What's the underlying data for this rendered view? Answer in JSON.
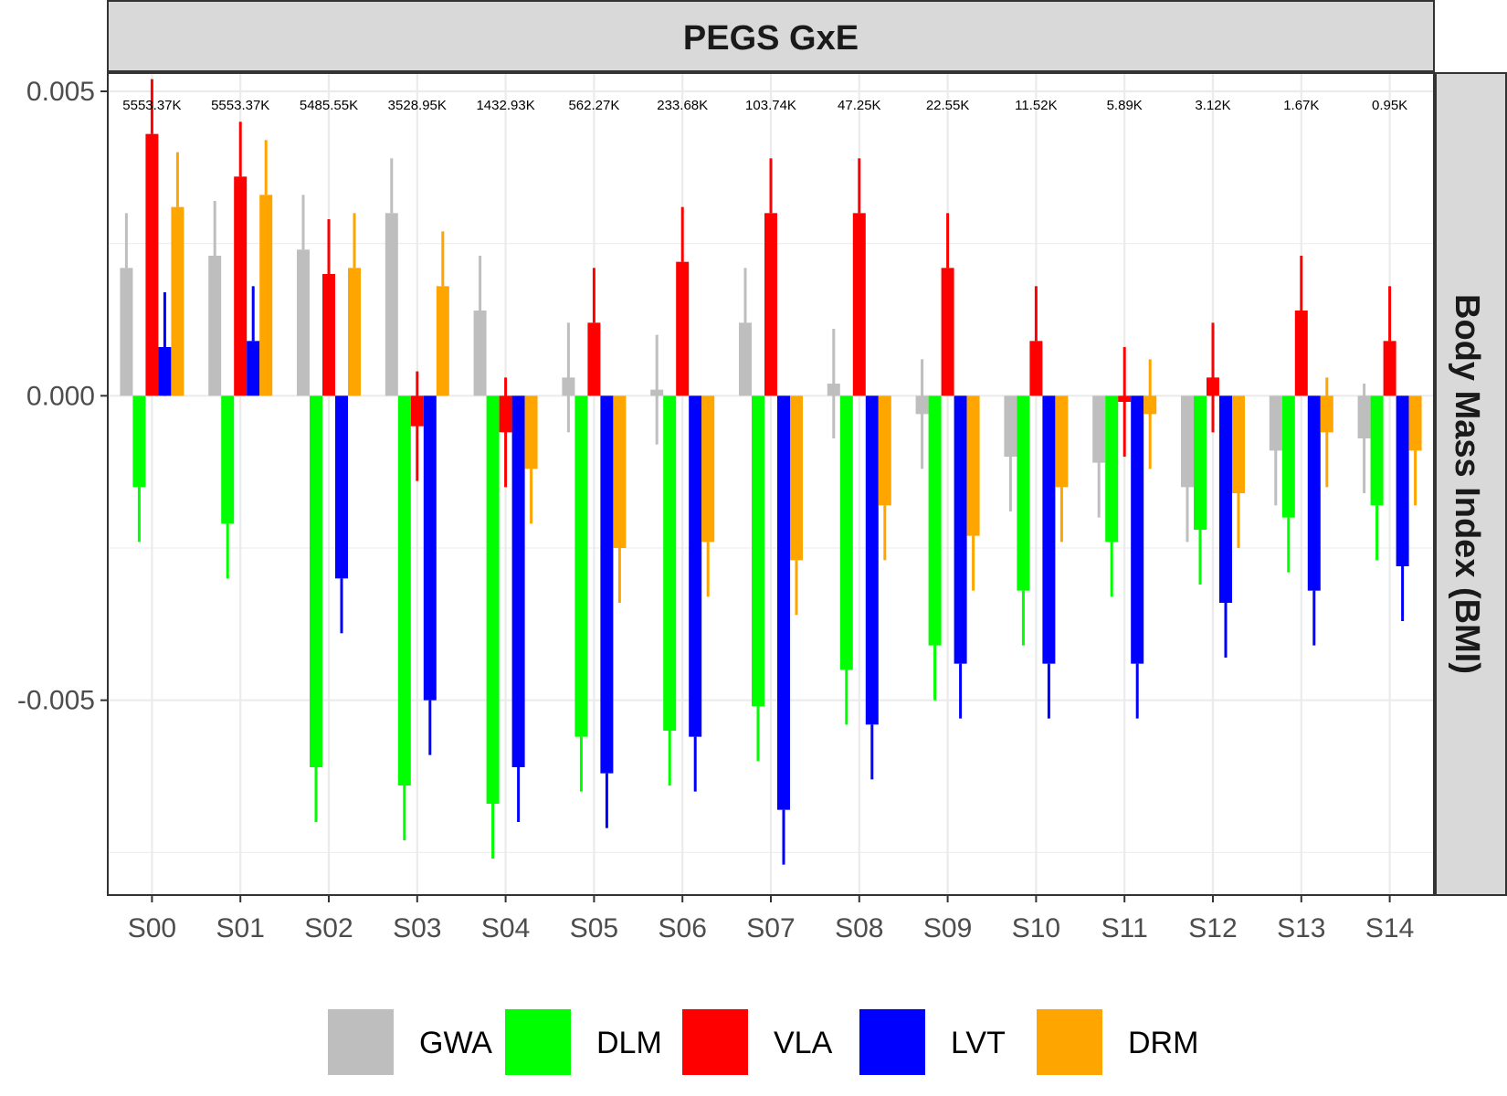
{
  "chart_data": {
    "type": "bar",
    "title": "PEGS GxE",
    "facet_label_right": "Body Mass Index (BMI)",
    "xlabel": "",
    "ylabel": "",
    "categories": [
      "S00",
      "S01",
      "S02",
      "S03",
      "S04",
      "S05",
      "S06",
      "S07",
      "S08",
      "S09",
      "S10",
      "S11",
      "S12",
      "S13",
      "S14"
    ],
    "annotations": [
      "5553.37K",
      "5553.37K",
      "5485.55K",
      "3528.95K",
      "1432.93K",
      "562.27K",
      "233.68K",
      "103.74K",
      "47.25K",
      "22.55K",
      "11.52K",
      "5.89K",
      "3.12K",
      "1.67K",
      "0.95K"
    ],
    "ylim": [
      -0.0082,
      0.0053
    ],
    "yticks": [
      0.005,
      0.0,
      -0.005
    ],
    "ytick_labels": [
      "0.005",
      "0.000",
      "-0.005"
    ],
    "grid": true,
    "legend_position": "bottom",
    "series": [
      {
        "name": "GWA",
        "color": "#BEBEBE",
        "values": [
          0.0021,
          0.0023,
          0.0024,
          0.003,
          0.0014,
          0.0003,
          0.0001,
          0.0012,
          0.0002,
          -0.0003,
          -0.001,
          -0.0011,
          -0.0015,
          -0.0009,
          -0.0007
        ],
        "upper": [
          0.003,
          0.0032,
          0.0033,
          0.0039,
          0.0023,
          0.0012,
          0.001,
          0.0021,
          0.0011,
          0.0006,
          -0.0001,
          -0.0002,
          -0.0006,
          0.0,
          0.0002
        ],
        "lower": [
          0.0021,
          0.0023,
          0.0024,
          0.003,
          0.0014,
          -0.0006,
          -0.0008,
          0.0012,
          -0.0007,
          -0.0012,
          -0.0019,
          -0.002,
          -0.0024,
          -0.0018,
          -0.0016
        ]
      },
      {
        "name": "DLM",
        "color": "#00FF00",
        "values": [
          -0.0015,
          -0.0021,
          -0.0061,
          -0.0064,
          -0.0067,
          -0.0056,
          -0.0055,
          -0.0051,
          -0.0045,
          -0.0041,
          -0.0032,
          -0.0024,
          -0.0022,
          -0.002,
          -0.0018
        ],
        "upper": [
          -0.0015,
          -0.0021,
          -0.0061,
          -0.0064,
          -0.0067,
          -0.0056,
          -0.0055,
          -0.0051,
          -0.0045,
          -0.0041,
          -0.0032,
          -0.0024,
          -0.0022,
          -0.002,
          -0.0018
        ],
        "lower": [
          -0.0024,
          -0.003,
          -0.007,
          -0.0073,
          -0.0076,
          -0.0065,
          -0.0064,
          -0.006,
          -0.0054,
          -0.005,
          -0.0041,
          -0.0033,
          -0.0031,
          -0.0029,
          -0.0027
        ]
      },
      {
        "name": "VLA",
        "color": "#FF0000",
        "values": [
          0.0043,
          0.0036,
          0.002,
          -0.0005,
          -0.0006,
          0.0012,
          0.0022,
          0.003,
          0.003,
          0.0021,
          0.0009,
          -0.0001,
          0.0003,
          0.0014,
          0.0009
        ],
        "upper": [
          0.0052,
          0.0045,
          0.0029,
          0.0004,
          0.0003,
          0.0021,
          0.0031,
          0.0039,
          0.0039,
          0.003,
          0.0018,
          0.0008,
          0.0012,
          0.0023,
          0.0018
        ],
        "lower": [
          0.0043,
          0.0036,
          0.002,
          -0.0014,
          -0.0015,
          0.0012,
          0.0022,
          0.003,
          0.003,
          0.0021,
          0.0009,
          -0.001,
          -0.0006,
          0.0014,
          0.0009
        ]
      },
      {
        "name": "LVT",
        "color": "#0000FF",
        "values": [
          0.0008,
          0.0009,
          -0.003,
          -0.005,
          -0.0061,
          -0.0062,
          -0.0056,
          -0.0068,
          -0.0054,
          -0.0044,
          -0.0044,
          -0.0044,
          -0.0034,
          -0.0032,
          -0.0028
        ],
        "upper": [
          0.0017,
          0.0018,
          -0.003,
          -0.005,
          -0.0061,
          -0.0062,
          -0.0056,
          -0.0068,
          -0.0054,
          -0.0044,
          -0.0044,
          -0.0044,
          -0.0034,
          -0.0032,
          -0.0028
        ],
        "lower": [
          0.0,
          0.0009,
          -0.0039,
          -0.0059,
          -0.007,
          -0.0071,
          -0.0065,
          -0.0077,
          -0.0063,
          -0.0053,
          -0.0053,
          -0.0053,
          -0.0043,
          -0.0041,
          -0.0037
        ]
      },
      {
        "name": "DRM",
        "color": "#FFA500",
        "values": [
          0.0031,
          0.0033,
          0.0021,
          0.0018,
          -0.0012,
          -0.0025,
          -0.0024,
          -0.0027,
          -0.0018,
          -0.0023,
          -0.0015,
          -0.0003,
          -0.0016,
          -0.0006,
          -0.0009
        ],
        "upper": [
          0.004,
          0.0042,
          0.003,
          0.0027,
          -0.0012,
          -0.0025,
          -0.0024,
          -0.0027,
          -0.0018,
          -0.0023,
          -0.0015,
          0.0006,
          -0.0016,
          0.0003,
          -0.0009
        ],
        "lower": [
          0.0031,
          0.0033,
          0.0021,
          0.0018,
          -0.0021,
          -0.0034,
          -0.0033,
          -0.0036,
          -0.0027,
          -0.0032,
          -0.0024,
          -0.0012,
          -0.0025,
          -0.0015,
          -0.0018
        ]
      }
    ]
  }
}
